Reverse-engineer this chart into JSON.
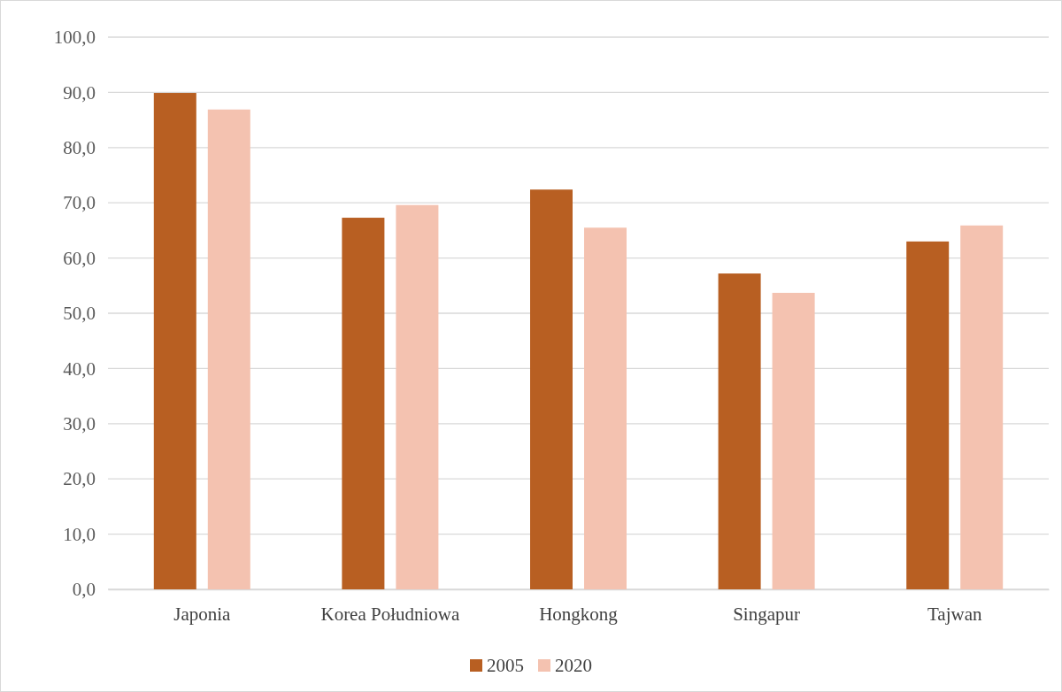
{
  "chart_data": {
    "type": "bar",
    "categories": [
      "Japonia",
      "Korea Południowa",
      "Hongkong",
      "Singapur",
      "Tajwan"
    ],
    "series": [
      {
        "name": "2005",
        "color": "#b85f22",
        "values": [
          89.9,
          67.3,
          72.4,
          57.2,
          63.0
        ]
      },
      {
        "name": "2020",
        "color": "#f4c2b0",
        "values": [
          86.9,
          69.6,
          65.5,
          53.7,
          65.9
        ]
      }
    ],
    "ylim": [
      0,
      100
    ],
    "yticks": [
      {
        "value": 0,
        "label": "0,0"
      },
      {
        "value": 10,
        "label": "10,0"
      },
      {
        "value": 20,
        "label": "20,0"
      },
      {
        "value": 30,
        "label": "30,0"
      },
      {
        "value": 40,
        "label": "40,0"
      },
      {
        "value": 50,
        "label": "50,0"
      },
      {
        "value": 60,
        "label": "60,0"
      },
      {
        "value": 70,
        "label": "70,0"
      },
      {
        "value": 80,
        "label": "80,0"
      },
      {
        "value": 90,
        "label": "90,0"
      },
      {
        "value": 100,
        "label": "100,0"
      }
    ],
    "grid": "y",
    "legend": "bottom"
  }
}
